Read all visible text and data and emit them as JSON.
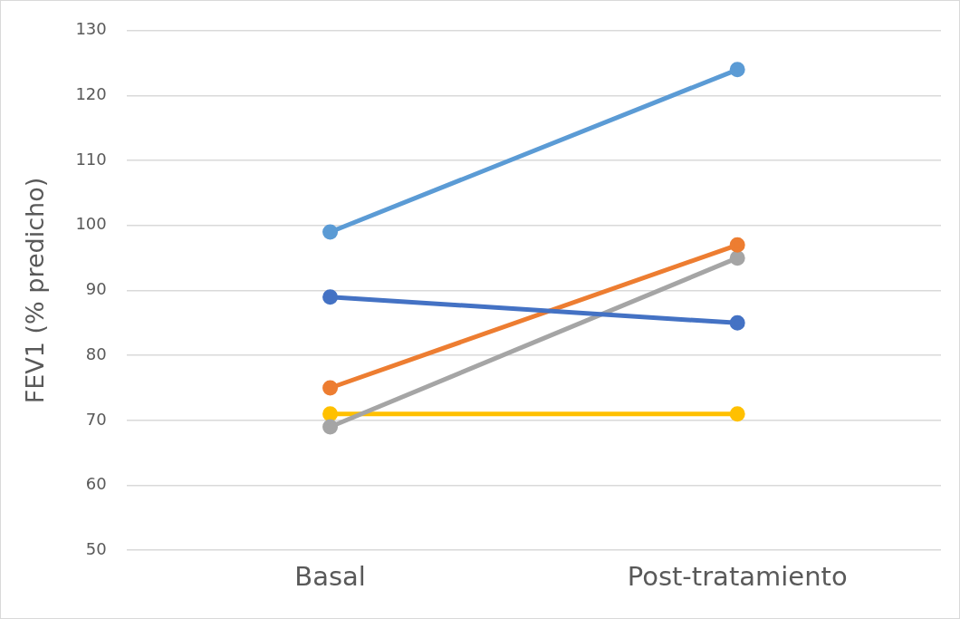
{
  "chart_data": {
    "type": "line",
    "ylabel": "FEV1 (% predicho)",
    "categories": [
      "Basal",
      "Post-tratamiento"
    ],
    "series": [
      {
        "color": "#5b9bd5",
        "values": [
          99,
          124
        ]
      },
      {
        "color": "#4472c4",
        "values": [
          89,
          85
        ]
      },
      {
        "color": "#ed7d31",
        "values": [
          75,
          97
        ]
      },
      {
        "color": "#a5a5a5",
        "values": [
          69,
          95
        ]
      },
      {
        "color": "#ffc000",
        "values": [
          71,
          71
        ]
      }
    ],
    "ylim": [
      50,
      130
    ],
    "yticks": [
      50,
      60,
      70,
      80,
      90,
      100,
      110,
      120,
      130
    ],
    "grid": "y",
    "legend": false,
    "marker": "circle",
    "line_style": "solid"
  }
}
